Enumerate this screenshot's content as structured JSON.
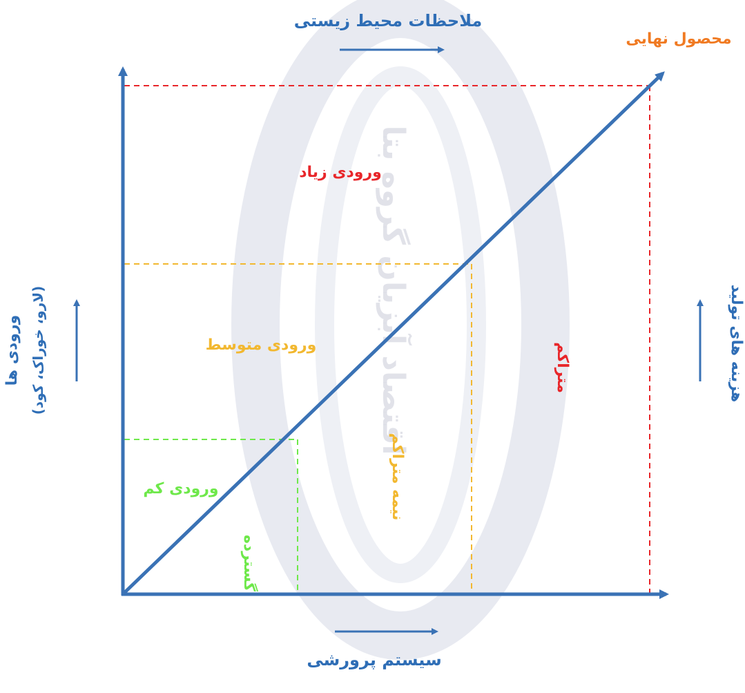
{
  "watermark": {
    "text": "اقتصاد آبزیان گروه بتا"
  },
  "labels": {
    "top_title": "ملاحظات محیط زیستی",
    "final_product": "محصول نهایی",
    "bottom_title": "سیستم پرورشی",
    "left_axis_line1": "ورودی ها",
    "left_axis_line2": "(لارو، خوراک، کود)",
    "right_axis": "هزینه های تولید",
    "high_input": "ورودی زیاد",
    "medium_input": "ورودی متوسط",
    "low_input": "ورودی کم",
    "intensive": "متراکم",
    "semi_intensive": "نیمه متراکم",
    "extensive": "گسترده"
  },
  "colors": {
    "axis": "#3a72b5",
    "title": "#2f6eb6",
    "final_product": "#f07a22",
    "high": "#e8262a",
    "medium": "#f2b830",
    "low": "#6ee84a",
    "watermark_ring": "#e6e8f0",
    "watermark_text": "#d9dbe3"
  }
}
